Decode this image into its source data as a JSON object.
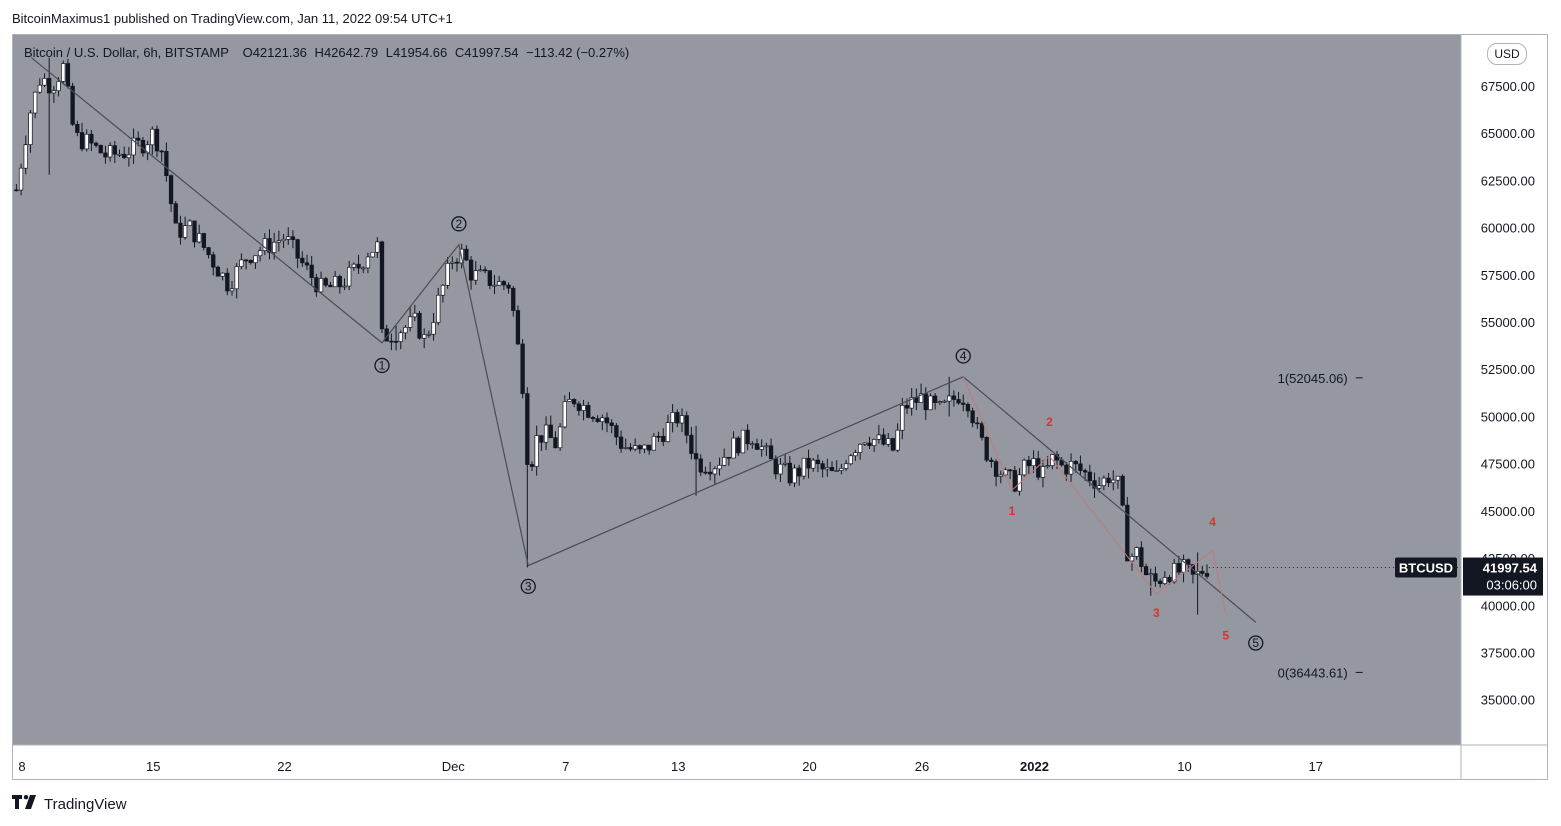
{
  "publisher": "BitcoinMaximus1 published on TradingView.com, Jan 11, 2022 09:54 UTC+1",
  "legend": {
    "symbol": "Bitcoin / U.S. Dollar, 6h, BITSTAMP",
    "open_label": "O",
    "open": "42121.36",
    "high_label": "H",
    "high": "42642.79",
    "low_label": "L",
    "low": "41954.66",
    "close_label": "C",
    "close": "41997.54",
    "change": "−113.42 (−0.27%)"
  },
  "currency_button": "USD",
  "footer_brand": "TradingView",
  "colors": {
    "plot_background": "#9598a1",
    "candle_up": "#ffffff",
    "candle_down": "#131722",
    "wave_line": "#4a4d55",
    "subwave_line": "#c07a7a",
    "subwave_label": "#e0302a",
    "price_label_bg": "#131722"
  },
  "chart_data": {
    "type": "candlestick",
    "interval": "6h",
    "ylim": [
      32600,
      70200
    ],
    "y_ticks": [
      {
        "value": 70000,
        "label": "70000.00"
      },
      {
        "value": 67500,
        "label": "67500.00"
      },
      {
        "value": 65000,
        "label": "65000.00"
      },
      {
        "value": 62500,
        "label": "62500.00"
      },
      {
        "value": 60000,
        "label": "60000.00"
      },
      {
        "value": 57500,
        "label": "57500.00"
      },
      {
        "value": 55000,
        "label": "55000.00"
      },
      {
        "value": 52500,
        "label": "52500.00"
      },
      {
        "value": 50000,
        "label": "50000.00"
      },
      {
        "value": 47500,
        "label": "47500.00"
      },
      {
        "value": 45000,
        "label": "45000.00"
      },
      {
        "value": 42500,
        "label": "42500.00"
      },
      {
        "value": 40000,
        "label": "40000.00"
      },
      {
        "value": 37500,
        "label": "37500.00"
      },
      {
        "value": 35000,
        "label": "35000.00"
      }
    ],
    "x_range_days": [
      0,
      40.5
    ],
    "x_ticks": [
      {
        "day": 0,
        "label": "8",
        "bold": false
      },
      {
        "day": 7,
        "label": "15",
        "bold": false
      },
      {
        "day": 14,
        "label": "22",
        "bold": false
      },
      {
        "day": 23,
        "label": "Dec",
        "bold": false
      },
      {
        "day": 29,
        "label": "7",
        "bold": false
      },
      {
        "day": 35,
        "label": "13",
        "bold": false
      },
      {
        "day": 42,
        "label": "20",
        "bold": false
      },
      {
        "day": 48,
        "label": "26",
        "bold": false
      },
      {
        "day": 54,
        "label": "2022",
        "bold": true
      },
      {
        "day": 62,
        "label": "10",
        "bold": false
      },
      {
        "day": 69,
        "label": "17",
        "bold": false
      }
    ],
    "price_path": [
      [
        -0.3,
        62000
      ],
      [
        0.4,
        66000
      ],
      [
        1.0,
        68000
      ],
      [
        1.6,
        67500
      ],
      [
        2.2,
        68500
      ],
      [
        2.8,
        64800
      ],
      [
        3.5,
        64500
      ],
      [
        4.5,
        63800
      ],
      [
        5.5,
        64000
      ],
      [
        6.5,
        64500
      ],
      [
        7.0,
        65000
      ],
      [
        7.5,
        64000
      ],
      [
        8.2,
        59800
      ],
      [
        9.0,
        60000
      ],
      [
        10.0,
        58500
      ],
      [
        11.0,
        57000
      ],
      [
        12.0,
        58500
      ],
      [
        13.0,
        59000
      ],
      [
        14.0,
        59500
      ],
      [
        15.0,
        58000
      ],
      [
        16.0,
        56700
      ],
      [
        17.0,
        57000
      ],
      [
        18.0,
        58000
      ],
      [
        18.5,
        58800
      ],
      [
        19.0,
        59000
      ],
      [
        19.2,
        54200
      ],
      [
        20.0,
        54500
      ],
      [
        21.0,
        55000
      ],
      [
        21.5,
        54000
      ],
      [
        22.0,
        55500
      ],
      [
        23.0,
        58500
      ],
      [
        23.5,
        58600
      ],
      [
        24.0,
        57500
      ],
      [
        25.0,
        57200
      ],
      [
        25.5,
        57000
      ],
      [
        26.0,
        57000
      ],
      [
        26.3,
        54800
      ],
      [
        26.8,
        51000
      ],
      [
        27.0,
        47000
      ],
      [
        27.5,
        49000
      ],
      [
        28.0,
        49000
      ],
      [
        28.5,
        48500
      ],
      [
        29.0,
        50500
      ],
      [
        29.5,
        51000
      ],
      [
        30.0,
        50500
      ],
      [
        31.0,
        50000
      ],
      [
        32.0,
        48500
      ],
      [
        33.0,
        48000
      ],
      [
        34.0,
        49000
      ],
      [
        35.0,
        50000
      ],
      [
        35.5,
        49000
      ],
      [
        36.0,
        47500
      ],
      [
        37.0,
        47500
      ],
      [
        38.0,
        48500
      ],
      [
        39.0,
        49000
      ],
      [
        40.0,
        47500
      ],
      [
        41.0,
        46800
      ],
      [
        42.0,
        47500
      ],
      [
        43.0,
        47000
      ],
      [
        43.5,
        46800
      ],
      [
        44.0,
        48000
      ],
      [
        45.0,
        49000
      ],
      [
        46.0,
        48500
      ],
      [
        46.5,
        48200
      ],
      [
        47.0,
        50500
      ],
      [
        48.0,
        51000
      ],
      [
        48.5,
        50500
      ],
      [
        49.0,
        50300
      ],
      [
        50.0,
        51200
      ],
      [
        50.5,
        50800
      ],
      [
        51.0,
        49000
      ],
      [
        51.5,
        48000
      ],
      [
        52.0,
        47300
      ],
      [
        52.5,
        46700
      ],
      [
        53.0,
        46500
      ],
      [
        53.5,
        47300
      ],
      [
        54.0,
        47500
      ],
      [
        54.5,
        46800
      ],
      [
        55.0,
        47800
      ],
      [
        55.5,
        47300
      ],
      [
        56.0,
        47400
      ],
      [
        57.0,
        46800
      ],
      [
        57.5,
        46400
      ],
      [
        58.0,
        46900
      ],
      [
        58.5,
        46300
      ],
      [
        59.0,
        42500
      ],
      [
        59.5,
        42800
      ],
      [
        60.0,
        41500
      ],
      [
        60.5,
        41200
      ],
      [
        61.0,
        41800
      ],
      [
        61.5,
        41700
      ],
      [
        62.0,
        41900
      ],
      [
        62.5,
        41400
      ],
      [
        63.0,
        41900
      ],
      [
        63.3,
        42000
      ]
    ],
    "events": [
      {
        "day": 1.5,
        "high": 69000,
        "low": 62800
      },
      {
        "day": 20.0,
        "high": 54800,
        "low": 53500
      },
      {
        "day": 27.0,
        "high": 49000,
        "low": 42000
      },
      {
        "day": 36.0,
        "high": 49500,
        "low": 45800
      },
      {
        "day": 49.5,
        "high": 52100,
        "low": 50000
      },
      {
        "day": 60.3,
        "high": 41500,
        "low": 40500
      },
      {
        "day": 62.8,
        "high": 42800,
        "low": 39500
      }
    ],
    "waves": [
      {
        "label": "1",
        "day": 19.2,
        "price": 53900,
        "label_price": 52700
      },
      {
        "label": "2",
        "day": 23.3,
        "price": 59100,
        "label_price": 60200
      },
      {
        "label": "3",
        "day": 27.0,
        "price": 42100,
        "label_price": 41000
      },
      {
        "label": "4",
        "day": 50.2,
        "price": 52100,
        "label_price": 53200
      },
      {
        "label": "5",
        "day": 65.8,
        "price": 39100,
        "label_price": 38000
      }
    ],
    "wave_path": [
      [
        0.5,
        69000
      ],
      [
        19.2,
        53900
      ],
      [
        23.3,
        59100
      ],
      [
        27.0,
        42100
      ],
      [
        50.2,
        52100
      ],
      [
        65.8,
        39100
      ]
    ],
    "subwaves": [
      {
        "label": "1",
        "day": 52.8,
        "price": 46100,
        "label_price": 45000
      },
      {
        "label": "2",
        "day": 54.8,
        "price": 47900,
        "label_price": 49700
      },
      {
        "label": "3",
        "day": 60.5,
        "price": 40600,
        "label_price": 39600
      },
      {
        "label": "4",
        "day": 63.5,
        "price": 42900,
        "label_price": 44400
      },
      {
        "label": "5",
        "day": 64.2,
        "price": 39500,
        "label_price": 38400
      }
    ],
    "subwave_path": [
      [
        50.2,
        52100
      ],
      [
        52.8,
        46100
      ],
      [
        54.8,
        47900
      ],
      [
        60.5,
        40600
      ],
      [
        63.5,
        42900
      ],
      [
        64.2,
        39500
      ]
    ],
    "fib_levels": [
      {
        "label": "1(52045.06)",
        "value": 52045.06
      },
      {
        "label": "0(36443.61)",
        "value": 36443.61
      }
    ],
    "fib_day_range": [
      61.0,
      71.5
    ],
    "current_price": {
      "symbol": "BTCUSD",
      "price": "41997.54",
      "countdown": "03:06:00",
      "value": 41997.54
    }
  }
}
